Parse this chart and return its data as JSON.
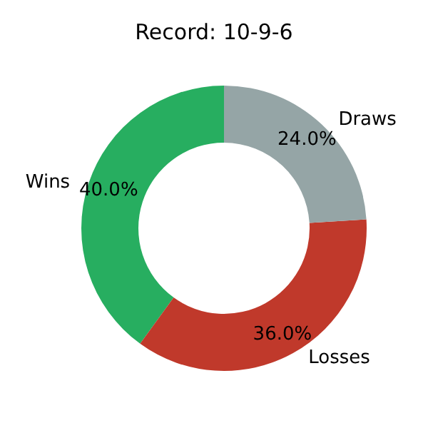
{
  "chart_data": {
    "type": "donut",
    "title": "Record: 10-9-6",
    "categories": [
      "Wins",
      "Losses",
      "Draws"
    ],
    "values": [
      40,
      36,
      24
    ],
    "value_labels": [
      "40.0%",
      "36.0%",
      "24.0%"
    ],
    "colors": [
      "#27ae60",
      "#c0392b",
      "#95a5a6"
    ],
    "legend": false
  }
}
